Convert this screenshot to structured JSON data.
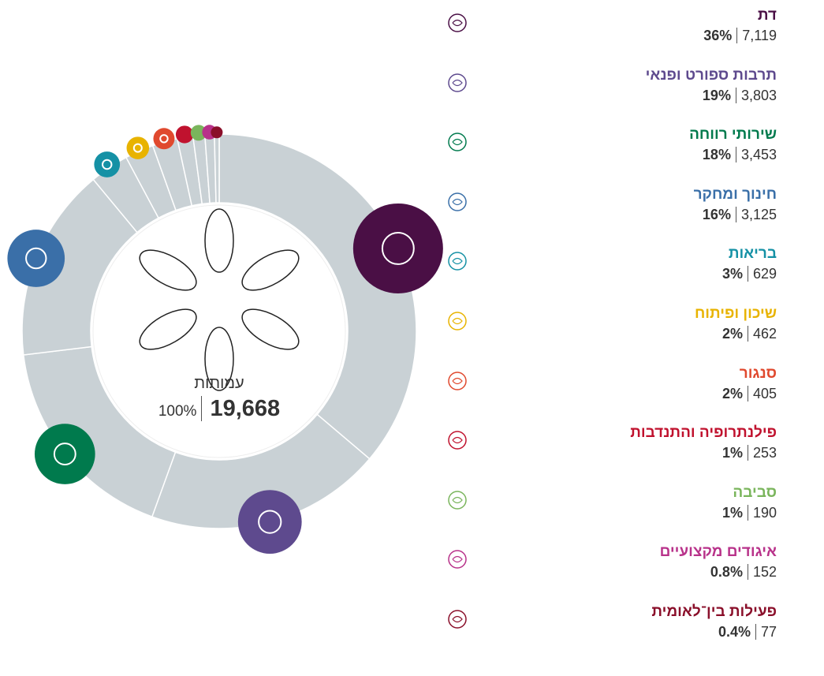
{
  "chart_data": {
    "type": "pie",
    "center_label": "עמותות",
    "total": 19668,
    "total_label": "19,668",
    "total_percent_label": "100%",
    "categories": [
      "דת",
      "תרבות ספורט ופנאי",
      "שירותי רווחה",
      "חינוך ומחקר",
      "בריאות",
      "שיכון ופיתוח",
      "סנגור",
      "פילנתרופיה והתנדבות",
      "סביבה",
      "איגודים מקצועיים",
      "פעילות בין־לאומית"
    ],
    "values": [
      7119,
      3803,
      3453,
      3125,
      629,
      462,
      405,
      253,
      190,
      152,
      77
    ],
    "value_labels": [
      "7,119",
      "3,803",
      "3,453",
      "3,125",
      "629",
      "462",
      "405",
      "253",
      "190",
      "152",
      "77"
    ],
    "percent_labels": [
      "36%",
      "19%",
      "18%",
      "16%",
      "3%",
      "2%",
      "2%",
      "1%",
      "1%",
      "0.8%",
      "0.4%"
    ],
    "colors": [
      "#4a0f45",
      "#5e4a8e",
      "#007a4d",
      "#3a6fa8",
      "#1591a5",
      "#e8b300",
      "#e0492e",
      "#c0122e",
      "#7ab55c",
      "#b8328a",
      "#8a0f2a"
    ],
    "ring_color": "#c9d1d5"
  }
}
